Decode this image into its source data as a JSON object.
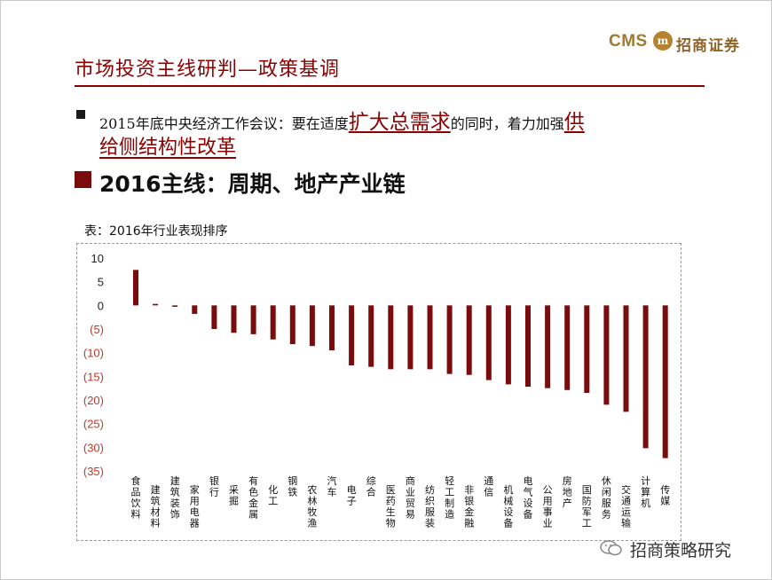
{
  "logo": {
    "en": "CMS",
    "badge": "m",
    "cn": "招商证券"
  },
  "title": "市场投资主线研判—政策基调",
  "bullet1": {
    "before": "2015年底中央经济工作会议：要在适度",
    "hl1": "扩大总需求",
    "middle": "的同时，着力加强",
    "hl2": "供",
    "line2": "给侧结构性改革"
  },
  "bullet2": "2016主线：周期、地产产业链",
  "table_label": "表：2016年行业表现排序",
  "watermark": "招商策略研究",
  "chart_data": {
    "type": "bar",
    "categories": [
      "食品饮料",
      "建筑材料",
      "建筑装饰",
      "家用电器",
      "银行",
      "采掘",
      "有色金属",
      "化工",
      "钢铁",
      "农林牧渔",
      "汽车",
      "电子",
      "综合",
      "医药生物",
      "商业贸易",
      "纺织服装",
      "轻工制造",
      "非银金融",
      "通信",
      "机械设备",
      "电气设备",
      "公用事业",
      "房地产",
      "国防军工",
      "休闲服务",
      "交通运输",
      "计算机",
      "传媒"
    ],
    "values": [
      7.5,
      0.3,
      -0.3,
      -1.8,
      -5.0,
      -5.8,
      -6.1,
      -7.2,
      -8.2,
      -8.6,
      -9.5,
      -12.7,
      -13.0,
      -13.5,
      -13.5,
      -13.5,
      -14.5,
      -14.7,
      -15.8,
      -16.7,
      -17.2,
      -17.5,
      -17.9,
      -18.5,
      -21.0,
      -22.5,
      -30.2,
      -32.3
    ],
    "yticks": [
      "10",
      "5",
      "0",
      "(5)",
      "(10)",
      "(15)",
      "(20)",
      "(25)",
      "(30)",
      "(35)"
    ],
    "ylim": [
      -35,
      10
    ],
    "bar_color": "#7b0c0c",
    "grid": false
  }
}
